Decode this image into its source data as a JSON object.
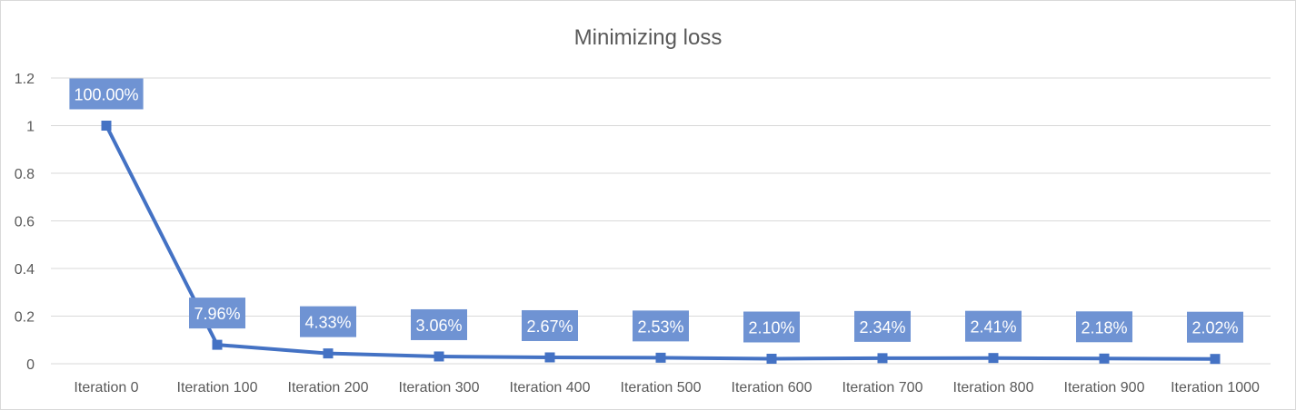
{
  "chart_data": {
    "type": "line",
    "title": "Minimizing loss",
    "xlabel": "",
    "ylabel": "",
    "categories": [
      "Iteration 0",
      "Iteration 100",
      "Iteration 200",
      "Iteration 300",
      "Iteration 400",
      "Iteration 500",
      "Iteration 600",
      "Iteration 700",
      "Iteration 800",
      "Iteration 900",
      "Iteration 1000"
    ],
    "series": [
      {
        "values": [
          1.0,
          0.0796,
          0.0433,
          0.0306,
          0.0267,
          0.0253,
          0.021,
          0.0234,
          0.0241,
          0.0218,
          0.0202
        ],
        "data_labels": [
          "100.00%",
          "7.96%",
          "4.33%",
          "3.06%",
          "2.67%",
          "2.53%",
          "2.10%",
          "2.34%",
          "2.41%",
          "2.18%",
          "2.02%"
        ],
        "color": "#4472c4",
        "marker": "square"
      }
    ],
    "ylim": [
      0,
      1.2
    ],
    "yticks": [
      "0",
      "0.2",
      "0.4",
      "0.6",
      "0.8",
      "1",
      "1.2"
    ],
    "grid": true,
    "legend": "none",
    "label_box_color": "#6f93d3"
  }
}
